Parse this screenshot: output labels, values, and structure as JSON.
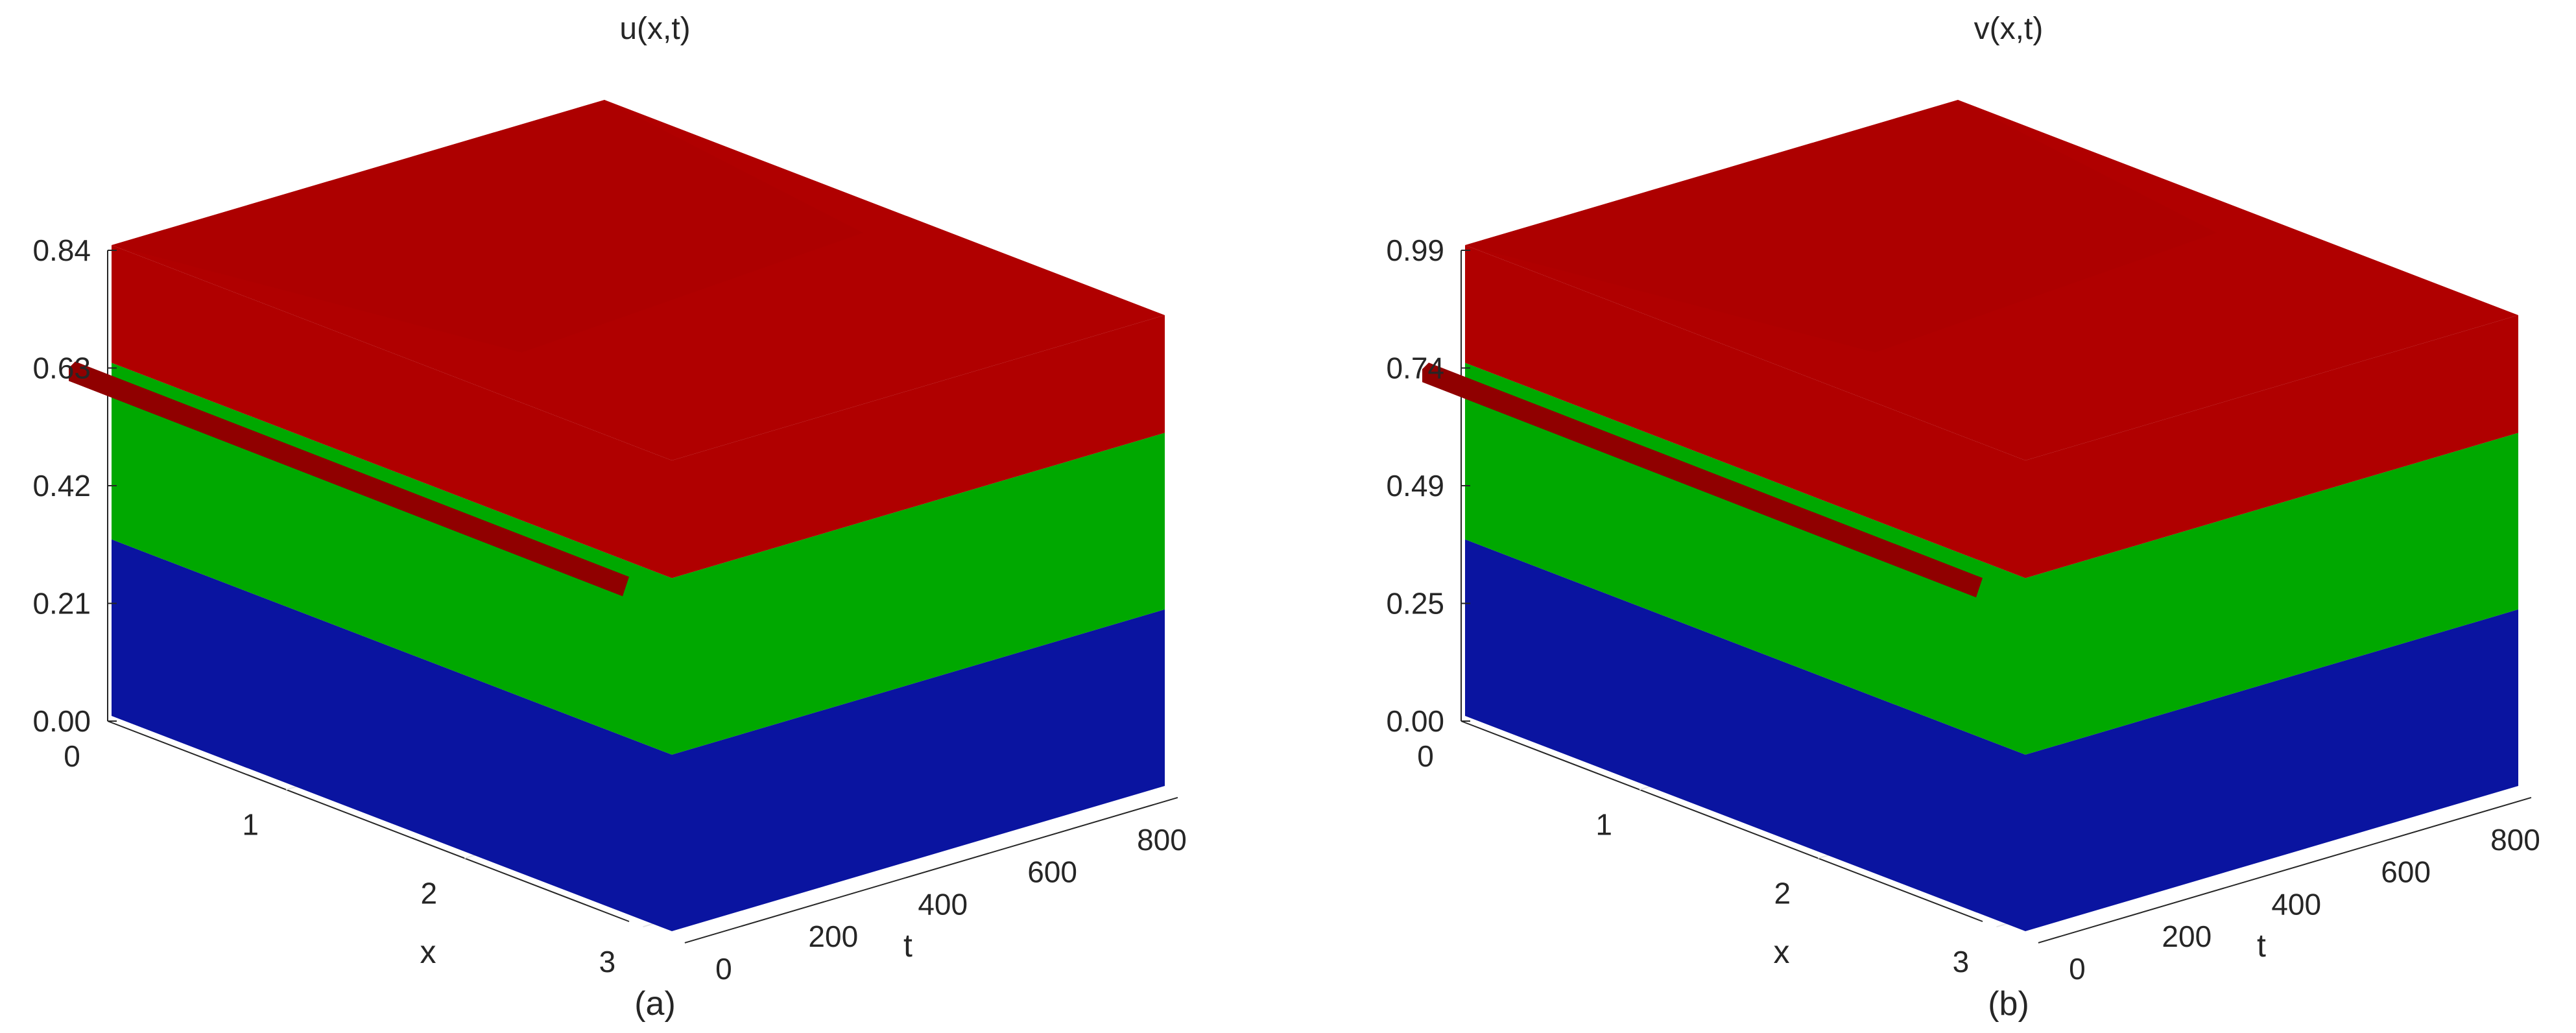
{
  "chart_data": [
    {
      "type": "surface3d",
      "title": "u(x,t)",
      "panel_label": "(a)",
      "xlabel": "x",
      "ylabel": "t",
      "z_ticks": [
        "0.00",
        "0.21",
        "0.42",
        "0.63",
        "0.84"
      ],
      "x_ticks": [
        "0",
        "1",
        "2",
        "3"
      ],
      "t_ticks": [
        "0",
        "200",
        "400",
        "600",
        "800"
      ],
      "x_range": [
        0,
        3.14
      ],
      "t_range": [
        0,
        900
      ],
      "z_range": [
        0,
        0.84
      ],
      "initial_value": 0.63,
      "steady_value": 0.84,
      "colormap": [
        "#0a14a0",
        "#00a800",
        "#b00000"
      ]
    },
    {
      "type": "surface3d",
      "title": "v(x,t)",
      "panel_label": "(b)",
      "xlabel": "x",
      "ylabel": "t",
      "z_ticks": [
        "0.00",
        "0.25",
        "0.49",
        "0.74",
        "0.99"
      ],
      "x_ticks": [
        "0",
        "1",
        "2",
        "3"
      ],
      "t_ticks": [
        "0",
        "200",
        "400",
        "600",
        "800"
      ],
      "x_range": [
        0,
        3.14
      ],
      "t_range": [
        0,
        900
      ],
      "z_range": [
        0,
        0.99
      ],
      "initial_value": 0.74,
      "steady_value": 0.99,
      "colormap": [
        "#0a14a0",
        "#00a800",
        "#b00000"
      ]
    }
  ]
}
